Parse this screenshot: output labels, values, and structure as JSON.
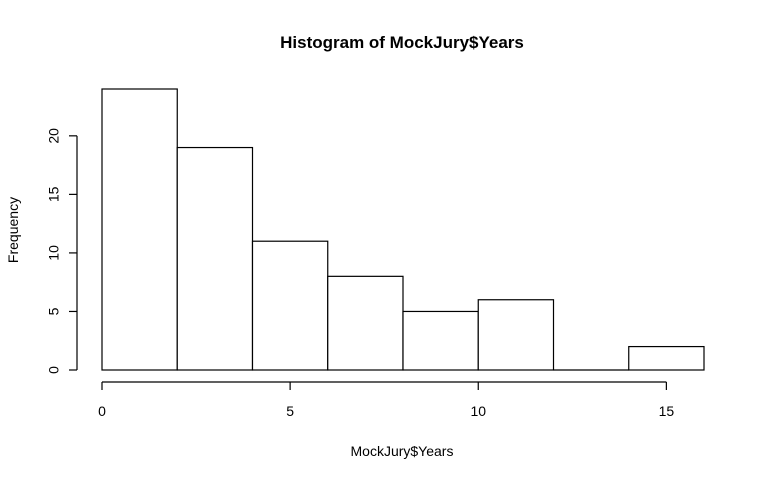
{
  "chart_data": {
    "type": "bar",
    "title": "Histogram of MockJury$Years",
    "xlabel": "MockJury$Years",
    "ylabel": "Frequency",
    "bins": [
      {
        "start": 0,
        "end": 2,
        "value": 24
      },
      {
        "start": 2,
        "end": 4,
        "value": 19
      },
      {
        "start": 4,
        "end": 6,
        "value": 11
      },
      {
        "start": 6,
        "end": 8,
        "value": 8
      },
      {
        "start": 8,
        "end": 10,
        "value": 5
      },
      {
        "start": 10,
        "end": 12,
        "value": 6
      },
      {
        "start": 12,
        "end": 14,
        "value": 0
      },
      {
        "start": 14,
        "end": 16,
        "value": 2
      }
    ],
    "xlim": [
      0,
      16
    ],
    "ylim": [
      0,
      24
    ],
    "xticks": [
      0,
      5,
      10,
      15
    ],
    "yticks": [
      0,
      5,
      10,
      15,
      20
    ],
    "grid": false,
    "legend": "none",
    "colors": {
      "bar_fill": "#ffffff",
      "bar_stroke": "#000000",
      "axis": "#000000",
      "background": "#ffffff"
    }
  }
}
